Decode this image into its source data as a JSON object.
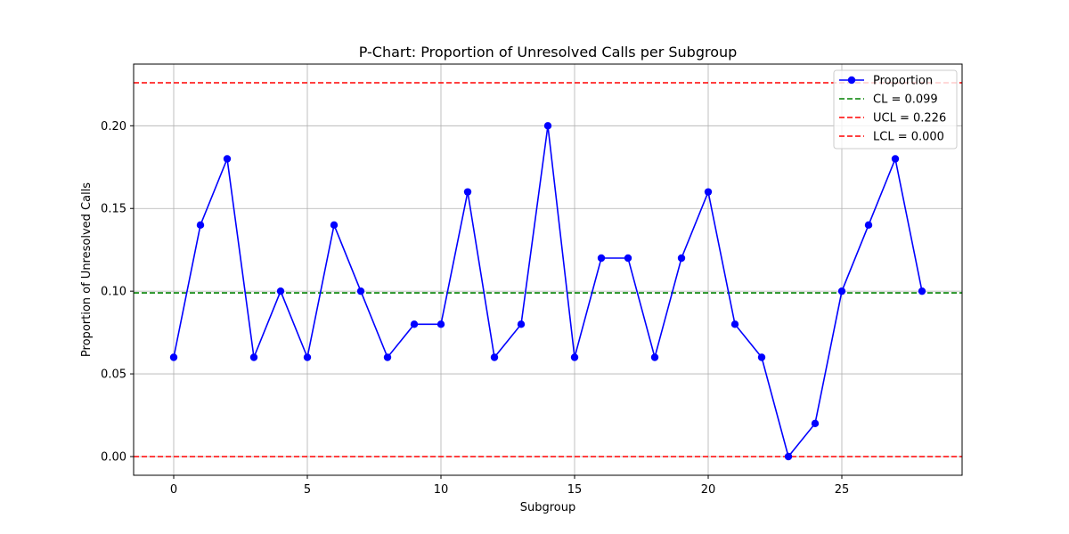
{
  "chart_data": {
    "type": "line",
    "title": "P-Chart: Proportion of Unresolved Calls per Subgroup",
    "xlabel": "Subgroup",
    "ylabel": "Proportion of Unresolved Calls",
    "xlim": [
      -1.5,
      29.5
    ],
    "ylim": [
      -0.0113,
      0.2373
    ],
    "x_ticks": [
      0,
      5,
      10,
      15,
      20,
      25
    ],
    "y_ticks": [
      0.0,
      0.05,
      0.1,
      0.15,
      0.2
    ],
    "y_tick_labels": [
      "0.00",
      "0.05",
      "0.10",
      "0.15",
      "0.20"
    ],
    "grid": true,
    "legend_position": "top-right",
    "series": [
      {
        "name": "Proportion",
        "color": "#0000ff",
        "marker": "circle",
        "x": [
          0,
          1,
          2,
          3,
          4,
          5,
          6,
          7,
          8,
          9,
          10,
          11,
          12,
          13,
          14,
          15,
          16,
          17,
          18,
          19,
          20,
          21,
          22,
          23,
          24,
          25,
          26,
          27,
          28
        ],
        "values": [
          0.06,
          0.14,
          0.18,
          0.06,
          0.1,
          0.06,
          0.14,
          0.1,
          0.06,
          0.08,
          0.08,
          0.16,
          0.06,
          0.08,
          0.2,
          0.06,
          0.12,
          0.12,
          0.06,
          0.12,
          0.16,
          0.08,
          0.06,
          0.0,
          0.02,
          0.1,
          0.14,
          0.18,
          0.1
        ]
      }
    ],
    "reference_lines": [
      {
        "name": "CL = 0.099",
        "value": 0.099,
        "color": "#008000",
        "style": "dashed"
      },
      {
        "name": "UCL = 0.226",
        "value": 0.226,
        "color": "#ff0000",
        "style": "dashed"
      },
      {
        "name": "LCL = 0.000",
        "value": 0.0,
        "color": "#ff0000",
        "style": "dashed"
      }
    ]
  }
}
